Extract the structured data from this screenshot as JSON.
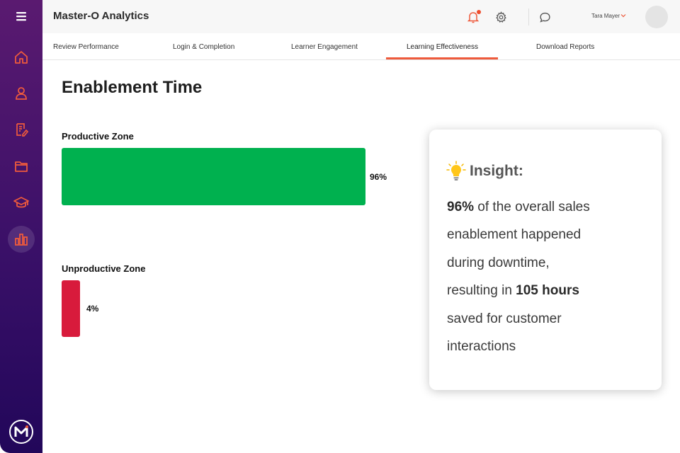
{
  "app": {
    "title": "Master-O Analytics"
  },
  "header": {
    "user_name": "Tara Mayer"
  },
  "tabs": [
    {
      "label": "Review Performance"
    },
    {
      "label": "Login & Completion"
    },
    {
      "label": "Learner Engagement"
    },
    {
      "label": "Learning Effectiveness",
      "active": true
    },
    {
      "label": "Download Reports"
    }
  ],
  "sidebar": {
    "items": [
      {
        "icon": "home-icon"
      },
      {
        "icon": "user-icon"
      },
      {
        "icon": "edit-document-icon"
      },
      {
        "icon": "folder-icon"
      },
      {
        "icon": "graduation-cap-icon"
      },
      {
        "icon": "bar-chart-icon",
        "active": true
      }
    ]
  },
  "page": {
    "title": "Enablement Time"
  },
  "zones": {
    "productive": {
      "label": "Productive Zone",
      "value": 96,
      "value_text": "96%",
      "color": "#00b14f"
    },
    "unproductive": {
      "label": "Unproductive Zone",
      "value": 4,
      "value_text": "4%",
      "color": "#d81b3c"
    }
  },
  "insight": {
    "title": "Insight:",
    "line1_bold": "96%",
    "line1_rest": " of the overall sales",
    "line2": "enablement happened",
    "line3": "during downtime,",
    "line4_start": "resulting in ",
    "line4_bold": "105 hours",
    "line5": "saved for customer",
    "line6": "interactions"
  },
  "colors": {
    "accent": "#ee5a3c",
    "sidebar_top": "#5a1a70",
    "sidebar_bottom": "#22075a"
  }
}
